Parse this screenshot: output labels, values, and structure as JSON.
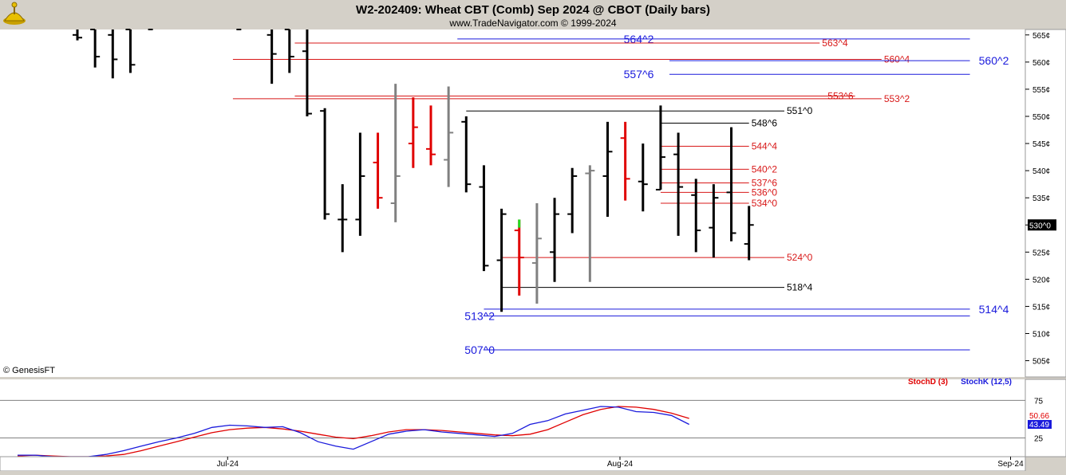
{
  "header": {
    "title": "W2-202409:  Wheat CBT (Comb) Sep 2024 @ CBOT  (Daily bars)",
    "subtitle": "www.TradeNavigator.com © 1999-2024",
    "watermark": "© GenesisFT",
    "logo_icon": "lamp-logo-icon"
  },
  "colors": {
    "background": "#ffffff",
    "frame": "#d4d0c8",
    "up_bar": "#000000",
    "down_bar": "#000000",
    "red_bar": "#e00000",
    "gray_bar": "#808080",
    "blue_level": "#1a1adc",
    "red_level": "#d81818",
    "black_level": "#000000",
    "stochD": "#e00000",
    "stochK": "#1a1adc"
  },
  "chart_data": [
    {
      "type": "ohlc",
      "title": "W2-202409:  Wheat CBT (Comb) Sep 2024 @ CBOT  (Daily bars)",
      "ylim": [
        502,
        566
      ],
      "y_ticks": [
        "505¢",
        "510¢",
        "515¢",
        "520¢",
        "525¢",
        "530¢",
        "535¢",
        "540¢",
        "545¢",
        "550¢",
        "555¢",
        "560¢",
        "565¢"
      ],
      "y_tick_values": [
        505,
        510,
        515,
        520,
        525,
        530,
        535,
        540,
        545,
        550,
        555,
        560,
        565
      ],
      "x_ticks": [
        "Jul-24",
        "Aug-24",
        "Sep-24"
      ],
      "x_tick_index": [
        8.5,
        30.7,
        52.8
      ],
      "last_price_label": "530^0",
      "last_price": 530.0,
      "bars": [
        {
          "i": 0,
          "o": 565,
          "h": 567,
          "l": 564,
          "c": 564.5,
          "color": "black"
        },
        {
          "i": 1,
          "o": 566,
          "h": 568,
          "l": 559,
          "c": 561,
          "color": "black"
        },
        {
          "i": 2,
          "o": 565,
          "h": 568,
          "l": 557,
          "c": 560.5,
          "color": "black"
        },
        {
          "i": 3,
          "o": 566,
          "h": 568,
          "l": 558,
          "c": 559.5,
          "color": "black"
        },
        {
          "i": 4,
          "o": 567,
          "h": 568,
          "l": 566,
          "c": 566,
          "color": "black"
        },
        {
          "i": 9,
          "o": 567,
          "h": 568,
          "l": 566,
          "c": 566,
          "color": "black"
        },
        {
          "i": 11,
          "o": 565,
          "h": 568,
          "l": 556,
          "c": 561.5,
          "color": "black"
        },
        {
          "i": 12,
          "o": 566,
          "h": 568,
          "l": 558,
          "c": 561,
          "color": "black"
        },
        {
          "i": 13,
          "o": 562,
          "h": 567,
          "l": 550,
          "c": 550.5,
          "color": "black"
        },
        {
          "i": 14,
          "o": 551,
          "h": 551.5,
          "l": 531,
          "c": 532,
          "color": "black"
        },
        {
          "i": 15,
          "o": 531,
          "h": 537.5,
          "l": 525,
          "c": 531,
          "color": "black"
        },
        {
          "i": 16,
          "o": 531,
          "h": 547,
          "l": 528,
          "c": 539,
          "color": "black"
        },
        {
          "i": 17,
          "o": 541.5,
          "h": 547,
          "l": 533,
          "c": 535,
          "color": "red"
        },
        {
          "i": 18,
          "o": 534,
          "h": 556,
          "l": 530.5,
          "c": 539,
          "color": "gray"
        },
        {
          "i": 19,
          "o": 545,
          "h": 553.5,
          "l": 540.5,
          "c": 548,
          "color": "red"
        },
        {
          "i": 20,
          "o": 544,
          "h": 552,
          "l": 541,
          "c": 543,
          "color": "red"
        },
        {
          "i": 21,
          "o": 542,
          "h": 555.5,
          "l": 537,
          "c": 547,
          "color": "gray"
        },
        {
          "i": 22,
          "o": 549,
          "h": 550,
          "l": 536,
          "c": 537.5,
          "color": "black"
        },
        {
          "i": 23,
          "o": 537,
          "h": 541,
          "l": 521.5,
          "c": 522.5,
          "color": "black"
        },
        {
          "i": 24,
          "o": 523.5,
          "h": 533,
          "l": 514,
          "c": 532,
          "color": "black"
        },
        {
          "i": 25,
          "o": 529,
          "h": 531,
          "l": 517,
          "c": 524,
          "color": "red"
        },
        {
          "i": 26,
          "o": 523,
          "h": 534,
          "l": 515.5,
          "c": 527.5,
          "color": "gray"
        },
        {
          "i": 27,
          "o": 525,
          "h": 535,
          "l": 519.5,
          "c": 532,
          "color": "black"
        },
        {
          "i": 28,
          "o": 532,
          "h": 540.5,
          "l": 528.5,
          "c": 539,
          "color": "black"
        },
        {
          "i": 29,
          "o": 539.5,
          "h": 541,
          "l": 519.5,
          "c": 540,
          "color": "gray"
        },
        {
          "i": 30,
          "o": 539,
          "h": 549,
          "l": 531.5,
          "c": 543.5,
          "color": "black"
        },
        {
          "i": 31,
          "o": 546,
          "h": 549,
          "l": 534.5,
          "c": 538.5,
          "color": "red"
        },
        {
          "i": 32,
          "o": 538,
          "h": 545,
          "l": 532.5,
          "c": 537.5,
          "color": "black"
        },
        {
          "i": 33,
          "o": 536.5,
          "h": 552,
          "l": 536.5,
          "c": 542.5,
          "color": "black"
        },
        {
          "i": 34,
          "o": 543,
          "h": 547,
          "l": 528,
          "c": 537,
          "color": "black"
        },
        {
          "i": 35,
          "o": 535.5,
          "h": 538.5,
          "l": 525,
          "c": 529,
          "color": "black"
        },
        {
          "i": 36,
          "o": 529.5,
          "h": 537.5,
          "l": 524,
          "c": 535,
          "color": "black"
        },
        {
          "i": 37,
          "o": 536,
          "h": 548,
          "l": 527,
          "c": 528.5,
          "color": "black"
        },
        {
          "i": 38,
          "o": 526.5,
          "h": 533.5,
          "l": 523.5,
          "c": 530,
          "color": "black"
        }
      ],
      "levels": [
        {
          "label": "564^2",
          "value": 564.25,
          "color": "blue",
          "from_i": 21.5,
          "to_i": 50.5,
          "label_side": "left",
          "label_i": 31.0
        },
        {
          "label": "563^4",
          "value": 563.5,
          "color": "red",
          "from_i": 12.3,
          "to_i": 42.0,
          "label_side": "right"
        },
        {
          "label": "560^4",
          "value": 560.5,
          "color": "red",
          "from_i": 8.8,
          "to_i": 45.5,
          "label_side": "right"
        },
        {
          "label": "560^2",
          "value": 560.25,
          "color": "blue",
          "from_i": 33.5,
          "to_i": 50.5,
          "label_side": "right",
          "label_i": 51.0
        },
        {
          "label": "557^6",
          "value": 557.75,
          "color": "blue",
          "from_i": 33.5,
          "to_i": 50.5,
          "label_side": "left",
          "label_i": 31.0
        },
        {
          "label": "553^6",
          "value": 553.75,
          "color": "red",
          "from_i": 12.3,
          "to_i": 44.0,
          "label_side": "right_inner"
        },
        {
          "label": "553^2",
          "value": 553.25,
          "color": "red",
          "from_i": 8.8,
          "to_i": 45.5,
          "label_side": "right"
        },
        {
          "label": "551^0",
          "value": 551.0,
          "color": "black",
          "from_i": 22.0,
          "to_i": 40.0,
          "label_side": "right"
        },
        {
          "label": "548^6",
          "value": 548.75,
          "color": "black",
          "from_i": 33.0,
          "to_i": 38.0,
          "label_side": "right"
        },
        {
          "label": "544^4",
          "value": 544.5,
          "color": "red",
          "from_i": 33.0,
          "to_i": 38.0,
          "label_side": "right"
        },
        {
          "label": "540^2",
          "value": 540.25,
          "color": "red",
          "from_i": 33.0,
          "to_i": 38.0,
          "label_side": "right"
        },
        {
          "label": "537^6",
          "value": 537.75,
          "color": "red",
          "from_i": 33.0,
          "to_i": 38.0,
          "label_side": "right"
        },
        {
          "label": "536^0",
          "value": 536.0,
          "color": "red",
          "from_i": 33.0,
          "to_i": 38.0,
          "label_side": "right"
        },
        {
          "label": "534^0",
          "value": 534.0,
          "color": "red",
          "from_i": 33.0,
          "to_i": 38.0,
          "label_side": "right"
        },
        {
          "label": "524^0",
          "value": 524.0,
          "color": "red",
          "from_i": 24.0,
          "to_i": 40.0,
          "label_side": "right"
        },
        {
          "label": "518^4",
          "value": 518.5,
          "color": "black",
          "from_i": 24.0,
          "to_i": 40.0,
          "label_side": "right"
        },
        {
          "label": "514^4",
          "value": 514.5,
          "color": "blue",
          "from_i": 23.0,
          "to_i": 50.5,
          "label_side": "right",
          "label_i": 51.0
        },
        {
          "label": "513^2",
          "value": 513.25,
          "color": "blue",
          "from_i": 23.0,
          "to_i": 50.5,
          "label_side": "left",
          "label_i": 22.0
        },
        {
          "label": "507^0",
          "value": 507.0,
          "color": "blue",
          "from_i": 23.0,
          "to_i": 50.5,
          "label_side": "left",
          "label_i": 22.0
        }
      ]
    },
    {
      "type": "line",
      "title": "Stochastics",
      "ylim": [
        0,
        100
      ],
      "y_ticks": [
        "75",
        "25"
      ],
      "y_tick_values": [
        75,
        25
      ],
      "hlines": [
        75,
        25
      ],
      "series": [
        {
          "name": "StochD (3)",
          "color": "red",
          "last_label": "50.66",
          "x": [
            0,
            1,
            2,
            3,
            4,
            5,
            6,
            7,
            8,
            9,
            10,
            11,
            12,
            13,
            14,
            15,
            16,
            17,
            18,
            19,
            20,
            21,
            22,
            23,
            24,
            25,
            26,
            27,
            28,
            29,
            30,
            31,
            32,
            33,
            34,
            35,
            36,
            37,
            38
          ],
          "values": [
            1,
            2,
            1,
            0,
            0,
            1,
            3,
            8,
            14,
            20,
            26,
            32,
            36,
            38,
            39,
            37,
            34,
            30,
            26,
            24,
            28,
            33,
            36,
            36,
            35,
            33,
            31,
            29,
            28,
            30,
            36,
            46,
            56,
            63,
            67,
            66,
            63,
            58,
            51
          ]
        },
        {
          "name": "StochK (12,5)",
          "color": "blue",
          "last_label": "43.49",
          "x": [
            0,
            1,
            2,
            3,
            4,
            5,
            6,
            7,
            8,
            9,
            10,
            11,
            12,
            13,
            14,
            15,
            16,
            17,
            18,
            19,
            20,
            21,
            22,
            23,
            24,
            25,
            26,
            27,
            28,
            29,
            30,
            31,
            32,
            33,
            34,
            35,
            36,
            37,
            38
          ],
          "values": [
            2,
            2,
            0,
            0,
            0,
            3,
            8,
            14,
            20,
            25,
            31,
            39,
            42,
            41,
            39,
            40,
            32,
            20,
            14,
            10,
            20,
            30,
            34,
            36,
            33,
            31,
            29,
            27,
            31,
            43,
            48,
            57,
            62,
            67,
            66,
            60,
            59,
            55,
            43
          ]
        }
      ],
      "x_ticks": [
        "Jul-24",
        "Aug-24",
        "Sep-24"
      ]
    }
  ]
}
